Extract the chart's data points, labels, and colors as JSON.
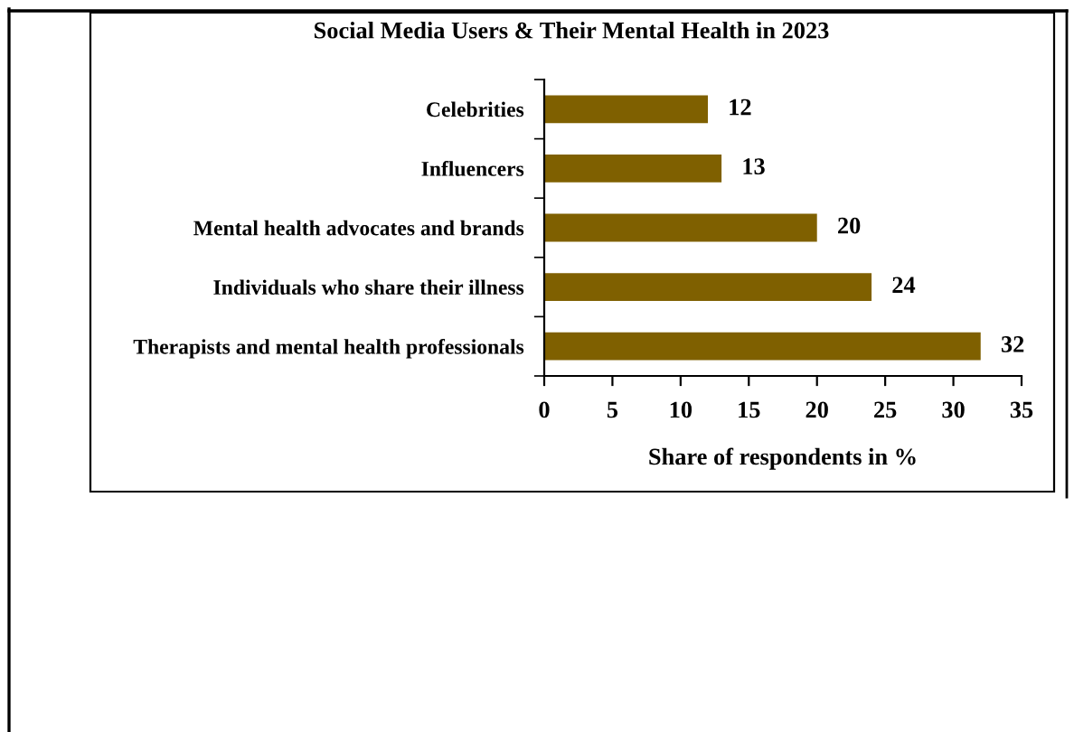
{
  "chart_data": {
    "type": "bar",
    "orientation": "horizontal",
    "title": "Social Media Users & Their Mental Health in 2023",
    "xlabel": "Share of respondents in %",
    "categories": [
      "Celebrities",
      "Influencers",
      "Mental health advocates and brands",
      "Individuals who share their illness",
      "Therapists and mental health professionals"
    ],
    "values": [
      12,
      13,
      20,
      24,
      32
    ],
    "color": "#7f6000",
    "xlim": [
      0,
      35
    ],
    "xticks": [
      0,
      5,
      10,
      15,
      20,
      25,
      30,
      35
    ],
    "grid": false,
    "data_labels": true
  }
}
